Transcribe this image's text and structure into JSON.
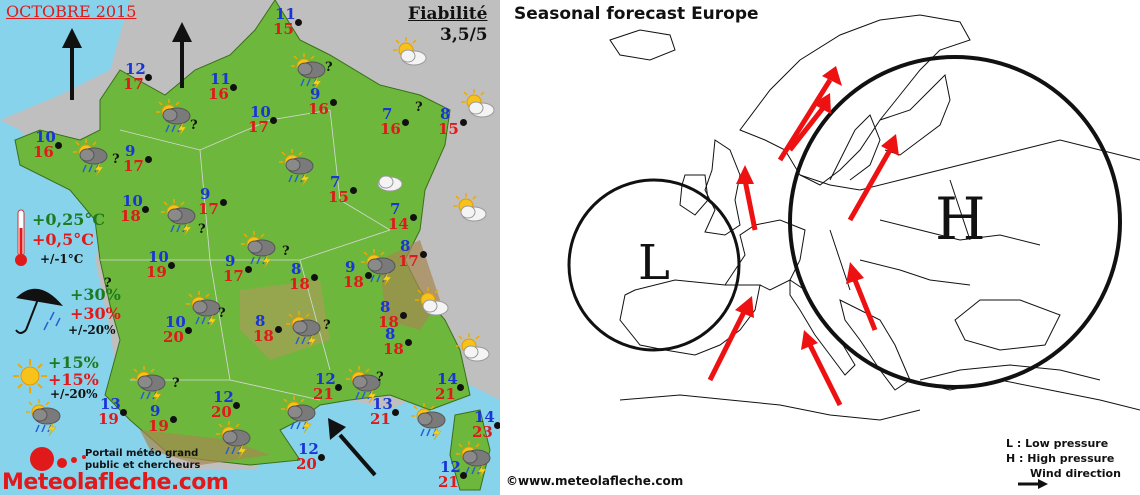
{
  "france": {
    "month_title": "OCTOBRE 2015",
    "reliability_label": "Fiabilité",
    "reliability_value": "3,5/5",
    "temperature_legend": {
      "line1": "+0,25°C",
      "line2": "+0,5°C",
      "range": "+/-1°C"
    },
    "rain_legend": {
      "line1": "+30%",
      "line2": "+30%",
      "range": "+/-20%"
    },
    "sun_legend": {
      "line1": "+15%",
      "line2": "+15%",
      "range": "+/-20%"
    },
    "question_mark": "?",
    "cities": [
      {
        "min": "11",
        "max": "15"
      },
      {
        "min": "12",
        "max": "17"
      },
      {
        "min": "11",
        "max": "16"
      },
      {
        "min": "9",
        "max": "16"
      },
      {
        "min": "10",
        "max": "17"
      },
      {
        "min": "7",
        "max": "16"
      },
      {
        "min": "8",
        "max": "15"
      },
      {
        "min": "10",
        "max": "16"
      },
      {
        "min": "9",
        "max": "17"
      },
      {
        "min": "7",
        "max": "15"
      },
      {
        "min": "10",
        "max": "18"
      },
      {
        "min": "9",
        "max": "17"
      },
      {
        "min": "7",
        "max": "14"
      },
      {
        "min": "8",
        "max": "17"
      },
      {
        "min": "10",
        "max": "19"
      },
      {
        "min": "9",
        "max": "17"
      },
      {
        "min": "8",
        "max": "18"
      },
      {
        "min": "9",
        "max": "18"
      },
      {
        "min": "10",
        "max": "20"
      },
      {
        "min": "8",
        "max": "18"
      },
      {
        "min": "8",
        "max": "18"
      },
      {
        "min": "8",
        "max": "18"
      },
      {
        "min": "12",
        "max": "21"
      },
      {
        "min": "13",
        "max": "19"
      },
      {
        "min": "9",
        "max": "19"
      },
      {
        "min": "12",
        "max": "20"
      },
      {
        "min": "13",
        "max": "21"
      },
      {
        "min": "14",
        "max": "21"
      },
      {
        "min": "12",
        "max": "20"
      },
      {
        "min": "14",
        "max": "23"
      },
      {
        "min": "12",
        "max": "21"
      }
    ],
    "brand": {
      "tagline_1": "Portail météo grand",
      "tagline_2": "public et chercheurs",
      "name": "Meteolafleche.com"
    },
    "colors": {
      "land": "#6db83c",
      "sea": "#87d3ec",
      "min_temp": "#1a35d6",
      "max_temp": "#e0191b",
      "month": "#e0191b"
    }
  },
  "europe": {
    "title": "Seasonal  forecast Europe",
    "low_symbol": "L",
    "high_symbol": "H",
    "legend": {
      "low": "L : Low pressure",
      "high": "H : High pressure",
      "wind": "Wind direction"
    },
    "credit": "©www.meteolafleche.com",
    "colors": {
      "arrow": "#ee1111",
      "outline": "#111111"
    }
  }
}
